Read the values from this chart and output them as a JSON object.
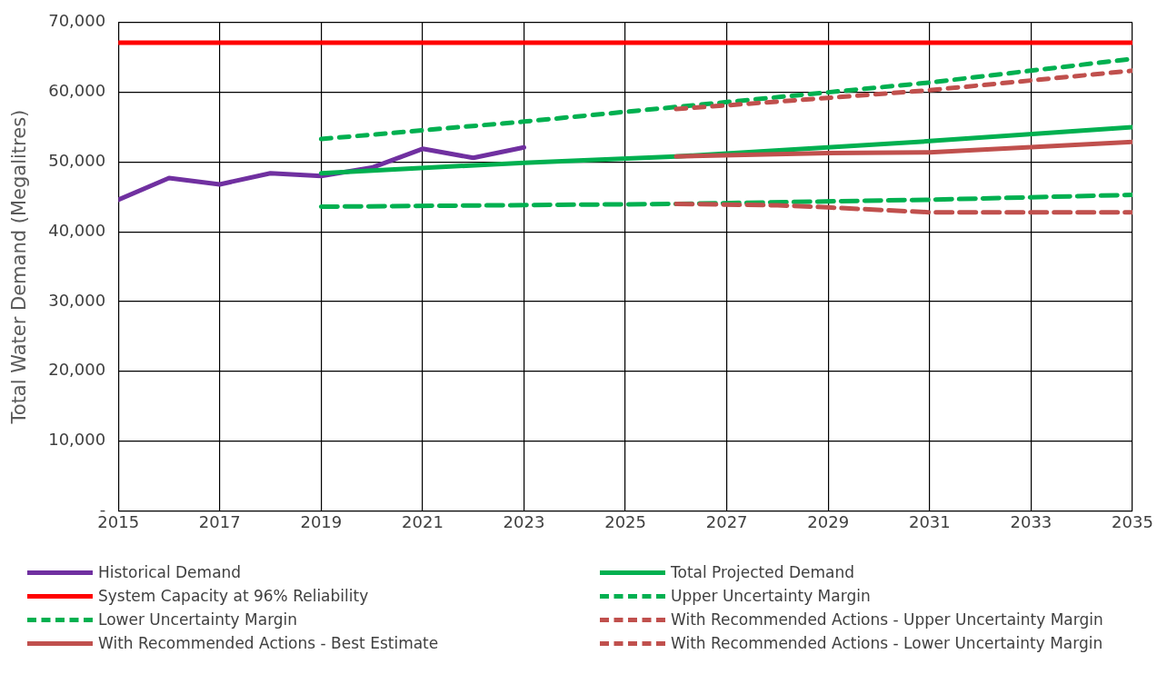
{
  "chart_data": {
    "type": "line",
    "ylabel": "Total Water Demand (Megalitres)",
    "xlim": [
      2015,
      2035
    ],
    "xticks": [
      2015,
      2017,
      2019,
      2021,
      2023,
      2025,
      2027,
      2029,
      2031,
      2033,
      2035
    ],
    "ylim": [
      0,
      70000
    ],
    "yticks": [
      {
        "value": 0,
        "label": "-"
      },
      {
        "value": 10000,
        "label": "10,000"
      },
      {
        "value": 20000,
        "label": "20,000"
      },
      {
        "value": 30000,
        "label": "30,000"
      },
      {
        "value": 40000,
        "label": "40,000"
      },
      {
        "value": 50000,
        "label": "50,000"
      },
      {
        "value": 60000,
        "label": "60,000"
      },
      {
        "value": 70000,
        "label": "70,000"
      }
    ],
    "grid": true,
    "legend": "bottom",
    "marker": "none",
    "series": [
      {
        "name": "Historical Demand",
        "color": "#7030a0",
        "line_style": "solid",
        "x": [
          2015,
          2016,
          2017,
          2018,
          2019,
          2020,
          2021,
          2022,
          2023
        ],
        "values": [
          44600,
          47700,
          46800,
          48400,
          48000,
          49200,
          51900,
          50600,
          52100
        ]
      },
      {
        "name": "Total Projected Demand",
        "color": "#00b050",
        "line_style": "solid",
        "x": [
          2019,
          2023,
          2026,
          2031,
          2035
        ],
        "values": [
          48400,
          49900,
          50800,
          53000,
          55000
        ]
      },
      {
        "name": "System Capacity at 96% Reliability",
        "color": "#ff0000",
        "line_style": "solid",
        "x": [
          2015,
          2035
        ],
        "values": [
          67100,
          67100
        ]
      },
      {
        "name": "Upper Uncertainty Margin",
        "color": "#00b050",
        "line_style": "dotted",
        "x": [
          2019,
          2023,
          2027,
          2031,
          2035
        ],
        "values": [
          53300,
          55800,
          58600,
          61400,
          64800
        ]
      },
      {
        "name": "Lower Uncertainty Margin",
        "color": "#00b050",
        "line_style": "dashed",
        "x": [
          2019,
          2026,
          2031,
          2035
        ],
        "values": [
          43600,
          44000,
          44600,
          45300
        ]
      },
      {
        "name": "With Recommended Actions - Upper Uncertainty Margin",
        "color": "#c0504d",
        "line_style": "dotted",
        "x": [
          2026,
          2029,
          2031,
          2035
        ],
        "values": [
          57600,
          59200,
          60300,
          63100
        ]
      },
      {
        "name": "With Recommended Actions - Best Estimate",
        "color": "#c0504d",
        "line_style": "solid",
        "x": [
          2026,
          2029,
          2031,
          2035
        ],
        "values": [
          50800,
          51300,
          51400,
          52900
        ]
      },
      {
        "name": "With Recommended Actions - Lower Uncertainty Margin",
        "color": "#c0504d",
        "line_style": "dashed",
        "x": [
          2026,
          2028,
          2029,
          2031,
          2035
        ],
        "values": [
          44000,
          43800,
          43500,
          42800,
          42800
        ]
      }
    ]
  }
}
